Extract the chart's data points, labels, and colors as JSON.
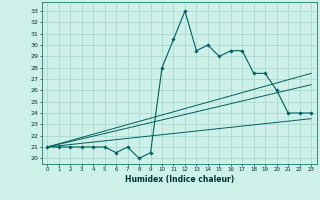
{
  "title": "",
  "xlabel": "Humidex (Indice chaleur)",
  "ylabel": "",
  "bg_color": "#cdf0e8",
  "grid_color": "#9ecfca",
  "line_color": "#006060",
  "xlim": [
    -0.5,
    23.5
  ],
  "ylim": [
    19.5,
    33.8
  ],
  "xticks": [
    0,
    1,
    2,
    3,
    4,
    5,
    6,
    7,
    8,
    9,
    10,
    11,
    12,
    13,
    14,
    15,
    16,
    17,
    18,
    19,
    20,
    21,
    22,
    23
  ],
  "yticks": [
    20,
    21,
    22,
    23,
    24,
    25,
    26,
    27,
    28,
    29,
    30,
    31,
    32,
    33
  ],
  "main_x": [
    0,
    1,
    2,
    3,
    4,
    5,
    6,
    7,
    8,
    9,
    10,
    11,
    12,
    13,
    14,
    15,
    16,
    17,
    18,
    19,
    20,
    21,
    22,
    23
  ],
  "main_y": [
    21,
    21,
    21,
    21,
    21,
    21,
    20.5,
    21,
    20,
    20.5,
    28,
    30.5,
    33,
    29.5,
    30,
    29,
    29.5,
    29.5,
    27.5,
    27.5,
    26,
    24,
    24,
    24
  ],
  "line1_x": [
    0,
    23
  ],
  "line1_y": [
    21,
    27.5
  ],
  "line2_x": [
    0,
    23
  ],
  "line2_y": [
    21,
    26.5
  ],
  "line3_x": [
    0,
    23
  ],
  "line3_y": [
    21,
    23.5
  ]
}
